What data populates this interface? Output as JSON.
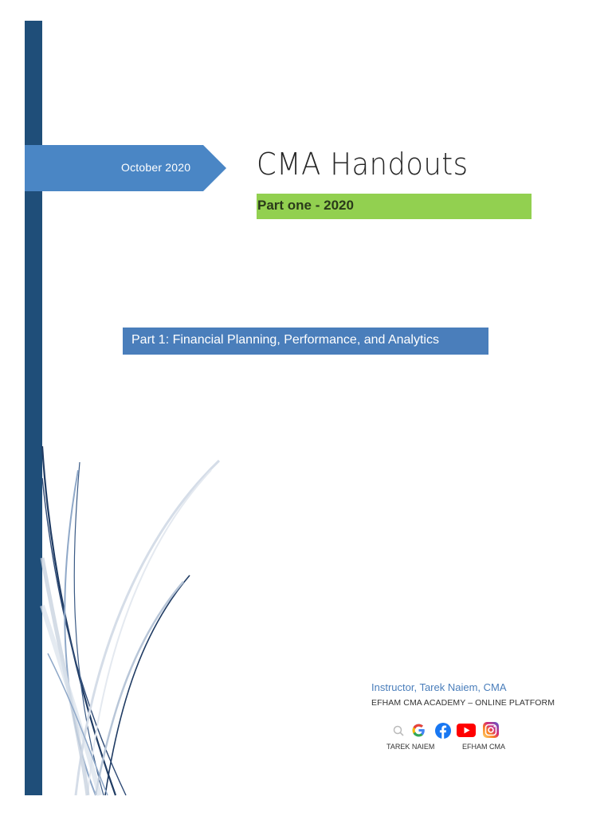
{
  "cover": {
    "date": "October 2020",
    "title": "CMA Handouts",
    "subtitle": "Part one - 2020",
    "part_title": "Part 1: Financial Planning, Performance, and Analytics"
  },
  "footer": {
    "instructor": "Instructor, Tarek Naiem, CMA",
    "academy": "EFHAM CMA ACADEMY – ONLINE PLATFORM",
    "social_icons": [
      "search-icon",
      "google-icon",
      "facebook-icon",
      "youtube-icon",
      "instagram-icon"
    ],
    "handle_left": "TAREK NAIEM",
    "handle_right": "EFHAM CMA"
  },
  "colors": {
    "sidebar": "#1f4e79",
    "date_banner": "#4a86c5",
    "subtitle_highlight": "#92d050",
    "part_box": "#4a7ebb"
  }
}
